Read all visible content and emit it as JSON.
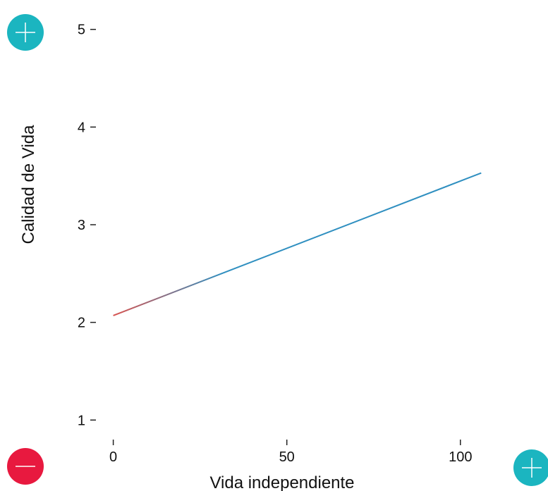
{
  "colors": {
    "plus_button": "#1bb5c0",
    "minus_button": "#e8193f",
    "line_low": "#d9534f",
    "line_high": "#2f8fc0",
    "axis_low": "#e8593f",
    "axis_high": "#2fa8c8"
  },
  "icons": {
    "plus": "plus-icon",
    "minus": "minus-icon"
  },
  "chart_data": {
    "type": "line",
    "xlabel": "Vida independiente",
    "ylabel": "Calidad de Vida",
    "xlim": [
      -5,
      110
    ],
    "ylim": [
      0.8,
      5.2
    ],
    "xticks": [
      0,
      50,
      100
    ],
    "yticks": [
      1,
      2,
      3,
      4,
      5
    ],
    "grid": false,
    "series": [
      {
        "x": [
          0,
          106
        ],
        "y": [
          2.07,
          3.53
        ]
      }
    ]
  }
}
